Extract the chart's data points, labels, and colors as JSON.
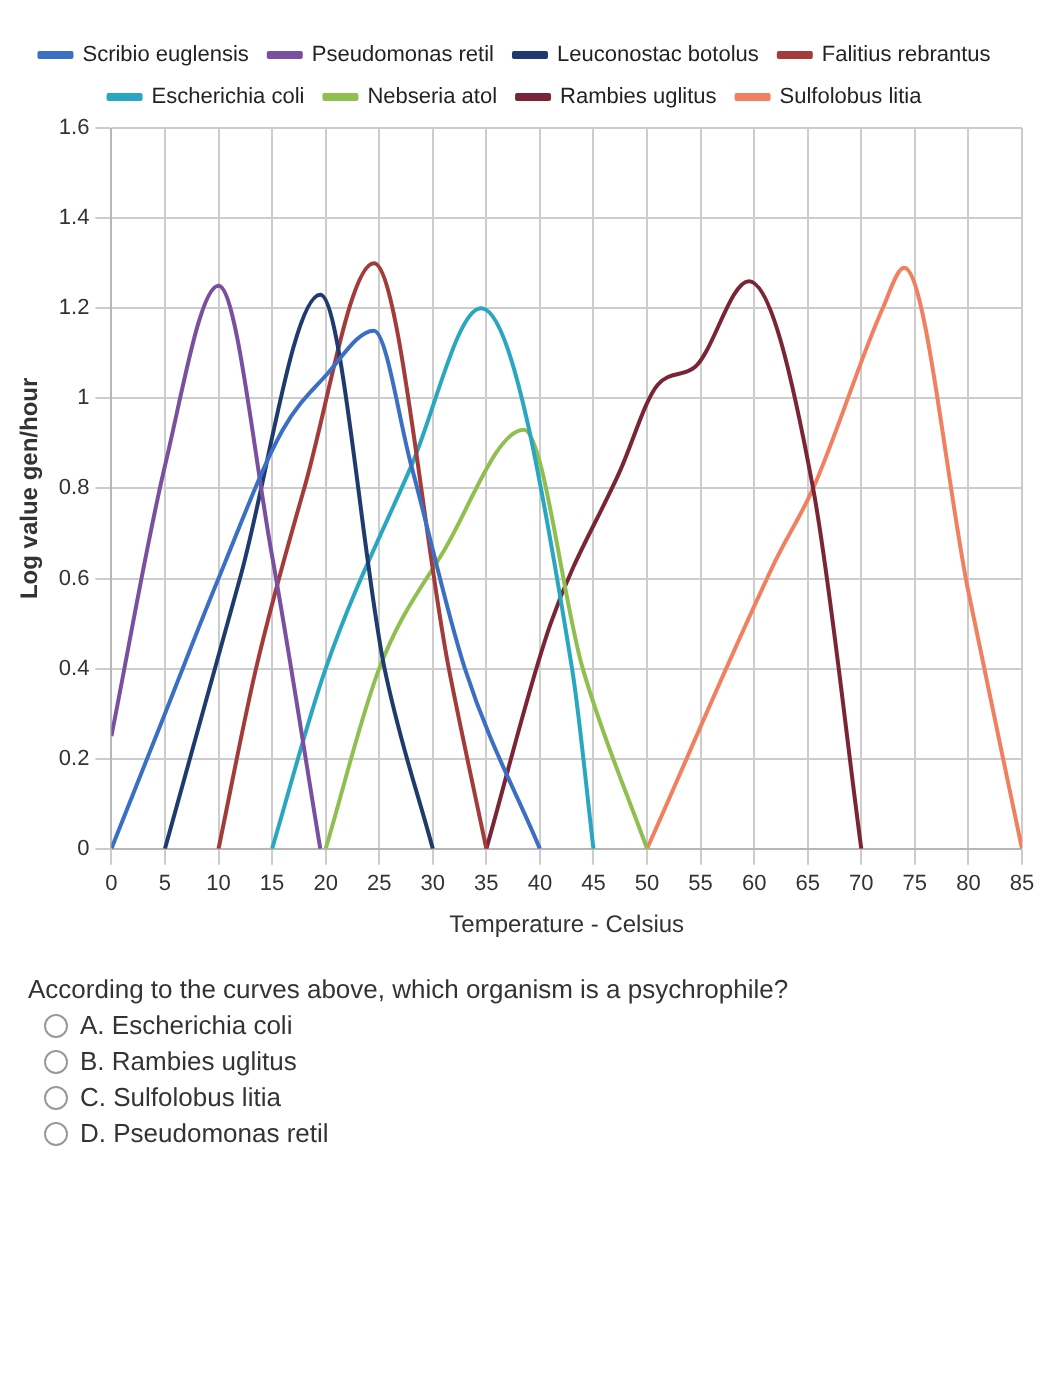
{
  "chart_data": {
    "type": "line",
    "xlabel": "Temperature - Celsius",
    "ylabel": "Log value gen/hour",
    "xlim": [
      0,
      85
    ],
    "xticks": [
      0,
      5,
      10,
      15,
      20,
      25,
      30,
      35,
      40,
      45,
      50,
      55,
      60,
      65,
      70,
      75,
      80,
      85
    ],
    "ylim": [
      0,
      1.6
    ],
    "yticks": [
      0,
      0.2,
      0.4,
      0.6,
      0.8,
      1,
      1.2,
      1.4,
      1.6
    ],
    "grid": true,
    "legend": "top",
    "marker": "none",
    "line_style": "solid",
    "series": [
      {
        "name": "Scribio euglensis",
        "color": "#3a6fc4",
        "x": [
          0,
          5,
          10,
          16,
          20,
          24.5,
          28,
          33,
          40
        ],
        "values": [
          0,
          0.3,
          0.6,
          0.93,
          1.05,
          1.15,
          0.85,
          0.4,
          0
        ]
      },
      {
        "name": "Pseudomonas retil",
        "color": "#7a4fa0",
        "x": [
          0,
          5,
          10,
          15,
          19.5
        ],
        "values": [
          0.25,
          0.85,
          1.25,
          0.65,
          0
        ]
      },
      {
        "name": "Leuconostac botolus",
        "color": "#1f3a6e",
        "x": [
          5,
          12,
          19.5,
          25.5,
          30
        ],
        "values": [
          0,
          0.6,
          1.23,
          0.4,
          0
        ]
      },
      {
        "name": "Falitius rebrantus",
        "color": "#a33b3b",
        "x": [
          10,
          13.5,
          18,
          24.5,
          31.5,
          35
        ],
        "values": [
          0,
          0.4,
          0.8,
          1.3,
          0.4,
          0
        ]
      },
      {
        "name": "Escherichia coli",
        "color": "#2aa7c0",
        "x": [
          15,
          20,
          28,
          34.5,
          43,
          45
        ],
        "values": [
          0,
          0.4,
          0.85,
          1.2,
          0.4,
          0
        ]
      },
      {
        "name": "Nebseria atol",
        "color": "#8fbf4f",
        "x": [
          20,
          25,
          31,
          38.5,
          44,
          50
        ],
        "values": [
          0,
          0.4,
          0.66,
          0.93,
          0.4,
          0
        ]
      },
      {
        "name": "Rambies uglitus",
        "color": "#7a2535",
        "x": [
          35,
          41,
          47.5,
          51,
          54.5,
          59.5,
          65.5,
          70
        ],
        "values": [
          0,
          0.5,
          0.84,
          1.03,
          1.07,
          1.26,
          0.8,
          0
        ]
      },
      {
        "name": "Sulfolobus litia",
        "color": "#f08060",
        "x": [
          50,
          62,
          65.5,
          72,
          74,
          80,
          85
        ],
        "values": [
          0,
          0.64,
          0.8,
          1.2,
          1.29,
          0.57,
          0
        ]
      }
    ],
    "annotations": [
      "According to the curves above, which organism is a psychrophile?",
      "A. Escherichia coli",
      "B. Rambies uglitus",
      "C. Sulfolobus litia",
      "D. Pseudomonas retil"
    ]
  }
}
